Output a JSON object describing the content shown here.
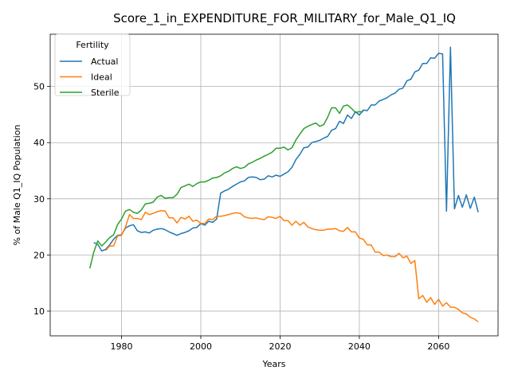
{
  "chart_data": {
    "type": "line",
    "title": "Score_1_in_EXPENDITURE_FOR_MILITARY_for_Male_Q1_IQ",
    "xlabel": "Years",
    "ylabel": "% of Male Q1_IQ Population",
    "xlim": [
      1962,
      2075
    ],
    "ylim": [
      5.6,
      59.3
    ],
    "xticks": [
      1980,
      2000,
      2020,
      2040,
      2060
    ],
    "yticks": [
      10,
      20,
      30,
      40,
      50
    ],
    "grid": true,
    "legend": {
      "title": "Fertility",
      "placement": "top-left"
    },
    "series": [
      {
        "name": "Actual",
        "color": "#1f77b4",
        "points": [
          [
            1973,
            22.2
          ],
          [
            1974,
            21.9
          ],
          [
            1975,
            20.7
          ],
          [
            1976,
            21.0
          ],
          [
            1977,
            21.8
          ],
          [
            1978,
            22.8
          ],
          [
            1979,
            23.5
          ],
          [
            1980,
            23.6
          ],
          [
            1981,
            24.8
          ],
          [
            1982,
            25.2
          ],
          [
            1983,
            25.4
          ],
          [
            1984,
            24.3
          ],
          [
            1985,
            24.0
          ],
          [
            1986,
            24.1
          ],
          [
            1987,
            23.9
          ],
          [
            1988,
            24.4
          ],
          [
            1989,
            24.6
          ],
          [
            1990,
            24.7
          ],
          [
            1991,
            24.5
          ],
          [
            1992,
            24.1
          ],
          [
            1993,
            23.8
          ],
          [
            1994,
            23.5
          ],
          [
            1995,
            23.8
          ],
          [
            1996,
            24.0
          ],
          [
            1997,
            24.3
          ],
          [
            1998,
            24.8
          ],
          [
            1999,
            24.9
          ],
          [
            2000,
            25.6
          ],
          [
            2001,
            25.3
          ],
          [
            2002,
            26.0
          ],
          [
            2003,
            25.8
          ],
          [
            2004,
            26.4
          ],
          [
            2005,
            31.0
          ],
          [
            2006,
            31.4
          ],
          [
            2007,
            31.7
          ],
          [
            2008,
            32.2
          ],
          [
            2009,
            32.6
          ],
          [
            2010,
            33.0
          ],
          [
            2011,
            33.2
          ],
          [
            2012,
            33.8
          ],
          [
            2013,
            33.9
          ],
          [
            2014,
            33.8
          ],
          [
            2015,
            33.4
          ],
          [
            2016,
            33.5
          ],
          [
            2017,
            34.1
          ],
          [
            2018,
            33.9
          ],
          [
            2019,
            34.2
          ],
          [
            2020,
            34.0
          ],
          [
            2021,
            34.4
          ],
          [
            2022,
            34.8
          ],
          [
            2023,
            35.6
          ],
          [
            2024,
            37.0
          ],
          [
            2025,
            37.9
          ],
          [
            2026,
            39.1
          ],
          [
            2027,
            39.2
          ],
          [
            2028,
            40.0
          ],
          [
            2029,
            40.2
          ],
          [
            2030,
            40.4
          ],
          [
            2031,
            40.8
          ],
          [
            2032,
            41.1
          ],
          [
            2033,
            42.2
          ],
          [
            2034,
            42.5
          ],
          [
            2035,
            43.8
          ],
          [
            2036,
            43.4
          ],
          [
            2037,
            44.9
          ],
          [
            2038,
            44.3
          ],
          [
            2039,
            45.5
          ],
          [
            2040,
            44.9
          ],
          [
            2041,
            45.8
          ],
          [
            2042,
            45.7
          ],
          [
            2043,
            46.7
          ],
          [
            2044,
            46.7
          ],
          [
            2045,
            47.4
          ],
          [
            2046,
            47.7
          ],
          [
            2047,
            48.0
          ],
          [
            2048,
            48.5
          ],
          [
            2049,
            48.8
          ],
          [
            2050,
            49.5
          ],
          [
            2051,
            49.7
          ],
          [
            2052,
            51.0
          ],
          [
            2053,
            51.3
          ],
          [
            2054,
            52.6
          ],
          [
            2055,
            52.9
          ],
          [
            2056,
            54.1
          ],
          [
            2057,
            54.1
          ],
          [
            2058,
            55.1
          ],
          [
            2059,
            55.0
          ],
          [
            2060,
            55.9
          ],
          [
            2061,
            55.8
          ],
          [
            2062,
            27.8
          ],
          [
            2063,
            57.0
          ],
          [
            2064,
            28.2
          ],
          [
            2065,
            30.6
          ],
          [
            2066,
            28.5
          ],
          [
            2067,
            30.7
          ],
          [
            2068,
            28.3
          ],
          [
            2069,
            30.3
          ],
          [
            2070,
            27.6
          ]
        ]
      },
      {
        "name": "Ideal",
        "color": "#ff7f0e",
        "points": [
          [
            1976,
            20.8
          ],
          [
            1977,
            21.6
          ],
          [
            1978,
            21.6
          ],
          [
            1979,
            23.4
          ],
          [
            1980,
            23.5
          ],
          [
            1981,
            25.0
          ],
          [
            1982,
            27.2
          ],
          [
            1983,
            26.5
          ],
          [
            1984,
            26.5
          ],
          [
            1985,
            26.3
          ],
          [
            1986,
            27.6
          ],
          [
            1987,
            27.2
          ],
          [
            1988,
            27.4
          ],
          [
            1989,
            27.7
          ],
          [
            1990,
            27.9
          ],
          [
            1991,
            27.8
          ],
          [
            1992,
            26.6
          ],
          [
            1993,
            26.6
          ],
          [
            1994,
            25.7
          ],
          [
            1995,
            26.7
          ],
          [
            1996,
            26.4
          ],
          [
            1997,
            26.9
          ],
          [
            1998,
            26.0
          ],
          [
            1999,
            26.2
          ],
          [
            2000,
            25.6
          ],
          [
            2001,
            25.6
          ],
          [
            2002,
            26.4
          ],
          [
            2003,
            26.3
          ],
          [
            2004,
            26.9
          ],
          [
            2005,
            26.9
          ],
          [
            2006,
            27.0
          ],
          [
            2007,
            27.2
          ],
          [
            2008,
            27.4
          ],
          [
            2009,
            27.5
          ],
          [
            2010,
            27.4
          ],
          [
            2011,
            26.8
          ],
          [
            2012,
            26.6
          ],
          [
            2013,
            26.5
          ],
          [
            2014,
            26.6
          ],
          [
            2015,
            26.4
          ],
          [
            2016,
            26.3
          ],
          [
            2017,
            26.8
          ],
          [
            2018,
            26.7
          ],
          [
            2019,
            26.5
          ],
          [
            2020,
            26.9
          ],
          [
            2021,
            26.1
          ],
          [
            2022,
            26.1
          ],
          [
            2023,
            25.3
          ],
          [
            2024,
            26.0
          ],
          [
            2025,
            25.3
          ],
          [
            2026,
            25.8
          ],
          [
            2027,
            25.0
          ],
          [
            2028,
            24.7
          ],
          [
            2029,
            24.5
          ],
          [
            2030,
            24.4
          ],
          [
            2031,
            24.4
          ],
          [
            2032,
            24.6
          ],
          [
            2033,
            24.6
          ],
          [
            2034,
            24.7
          ],
          [
            2035,
            24.3
          ],
          [
            2036,
            24.2
          ],
          [
            2037,
            24.9
          ],
          [
            2038,
            24.1
          ],
          [
            2039,
            24.1
          ],
          [
            2040,
            23.0
          ],
          [
            2041,
            22.8
          ],
          [
            2042,
            21.8
          ],
          [
            2043,
            21.8
          ],
          [
            2044,
            20.5
          ],
          [
            2045,
            20.5
          ],
          [
            2046,
            19.9
          ],
          [
            2047,
            20.0
          ],
          [
            2048,
            19.7
          ],
          [
            2049,
            19.7
          ],
          [
            2050,
            20.3
          ],
          [
            2051,
            19.5
          ],
          [
            2052,
            19.8
          ],
          [
            2053,
            18.5
          ],
          [
            2054,
            19.0
          ],
          [
            2055,
            12.2
          ],
          [
            2056,
            12.8
          ],
          [
            2057,
            11.6
          ],
          [
            2058,
            12.4
          ],
          [
            2059,
            11.2
          ],
          [
            2060,
            12.1
          ],
          [
            2061,
            10.9
          ],
          [
            2062,
            11.5
          ],
          [
            2063,
            10.7
          ],
          [
            2064,
            10.7
          ],
          [
            2065,
            10.3
          ],
          [
            2066,
            9.7
          ],
          [
            2067,
            9.5
          ],
          [
            2068,
            8.9
          ],
          [
            2069,
            8.6
          ],
          [
            2070,
            8.1
          ]
        ]
      },
      {
        "name": "Sterile",
        "color": "#2ca02c",
        "points": [
          [
            1972,
            17.6
          ],
          [
            1973,
            20.5
          ],
          [
            1974,
            22.5
          ],
          [
            1975,
            21.6
          ],
          [
            1976,
            22.3
          ],
          [
            1977,
            23.1
          ],
          [
            1978,
            23.6
          ],
          [
            1979,
            25.4
          ],
          [
            1980,
            26.4
          ],
          [
            1981,
            27.8
          ],
          [
            1982,
            28.1
          ],
          [
            1983,
            27.6
          ],
          [
            1984,
            27.4
          ],
          [
            1985,
            28.0
          ],
          [
            1986,
            29.1
          ],
          [
            1987,
            29.2
          ],
          [
            1988,
            29.4
          ],
          [
            1989,
            30.3
          ],
          [
            1990,
            30.6
          ],
          [
            1991,
            30.1
          ],
          [
            1992,
            30.2
          ],
          [
            1993,
            30.2
          ],
          [
            1994,
            30.8
          ],
          [
            1995,
            32.0
          ],
          [
            1996,
            32.3
          ],
          [
            1997,
            32.6
          ],
          [
            1998,
            32.2
          ],
          [
            1999,
            32.7
          ],
          [
            2000,
            33.0
          ],
          [
            2001,
            33.0
          ],
          [
            2002,
            33.3
          ],
          [
            2003,
            33.7
          ],
          [
            2004,
            33.8
          ],
          [
            2005,
            34.1
          ],
          [
            2006,
            34.6
          ],
          [
            2007,
            34.9
          ],
          [
            2008,
            35.4
          ],
          [
            2009,
            35.7
          ],
          [
            2010,
            35.4
          ],
          [
            2011,
            35.6
          ],
          [
            2012,
            36.2
          ],
          [
            2013,
            36.5
          ],
          [
            2014,
            36.9
          ],
          [
            2015,
            37.2
          ],
          [
            2016,
            37.6
          ],
          [
            2017,
            37.9
          ],
          [
            2018,
            38.3
          ],
          [
            2019,
            39.0
          ],
          [
            2020,
            39.0
          ],
          [
            2021,
            39.2
          ],
          [
            2022,
            38.7
          ],
          [
            2023,
            39.1
          ],
          [
            2024,
            40.5
          ],
          [
            2025,
            41.5
          ],
          [
            2026,
            42.5
          ],
          [
            2027,
            42.9
          ],
          [
            2028,
            43.2
          ],
          [
            2029,
            43.5
          ],
          [
            2030,
            42.9
          ],
          [
            2031,
            43.2
          ],
          [
            2032,
            44.5
          ],
          [
            2033,
            46.2
          ],
          [
            2034,
            46.2
          ],
          [
            2035,
            45.2
          ],
          [
            2036,
            46.5
          ],
          [
            2037,
            46.7
          ],
          [
            2038,
            46.1
          ],
          [
            2039,
            45.4
          ],
          [
            2040,
            45.5
          ],
          [
            2041,
            45.5
          ]
        ]
      }
    ]
  }
}
